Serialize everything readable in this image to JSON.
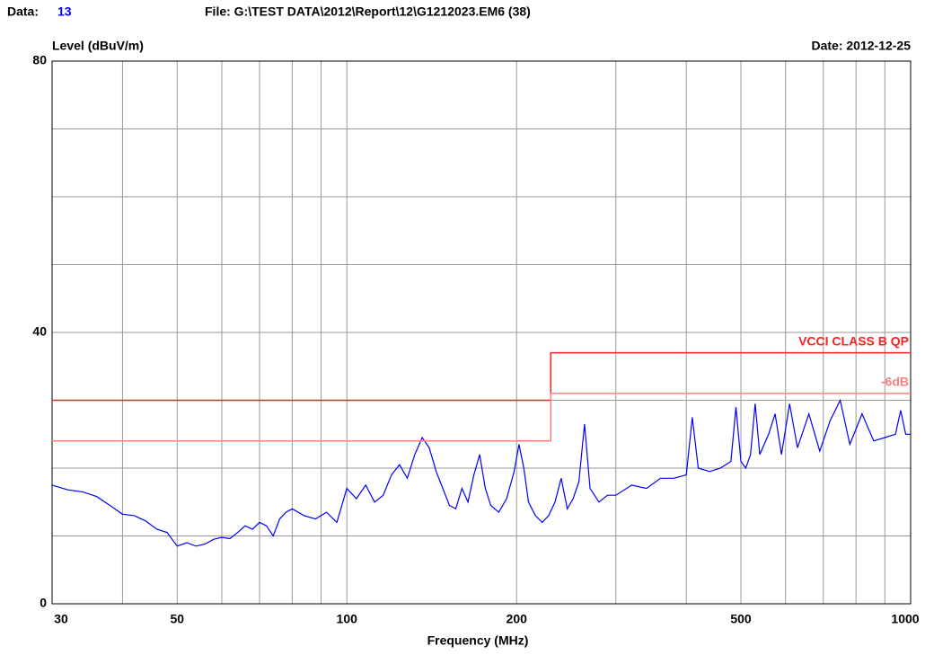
{
  "chart_data": {
    "type": "line",
    "data_label": "Data:",
    "data_number": "13",
    "file": "File: G:\\TEST DATA\\2012\\Report\\12\\G1212023.EM6  (38)",
    "ylabel": "Level (dBuV/m)",
    "date": "Date: 2012-12-25",
    "xlabel": "Frequency (MHz)",
    "xscale": "log",
    "xlim": [
      30,
      1000
    ],
    "ylim": [
      0,
      80
    ],
    "xticks": [
      30,
      50,
      100,
      200,
      500,
      1000
    ],
    "xminor": [
      40,
      60,
      70,
      80,
      90,
      300,
      400,
      600,
      700,
      800,
      900
    ],
    "yticks": [
      0,
      40,
      80
    ],
    "yminor": [
      10,
      20,
      30,
      50,
      60,
      70
    ],
    "grid": true,
    "series": [
      {
        "name": "Level",
        "color": "#0000ff",
        "x": [
          30,
          32,
          34,
          36,
          38,
          40,
          42,
          44,
          46,
          48,
          50,
          52,
          54,
          56,
          58,
          60,
          62,
          64,
          66,
          68,
          70,
          72,
          74,
          76,
          78,
          80,
          84,
          88,
          92,
          96,
          100,
          104,
          108,
          112,
          116,
          120,
          124,
          128,
          132,
          136,
          140,
          144,
          148,
          152,
          156,
          160,
          164,
          168,
          172,
          176,
          180,
          186,
          192,
          198,
          202,
          206,
          210,
          216,
          222,
          228,
          234,
          240,
          246,
          252,
          258,
          264,
          270,
          280,
          290,
          300,
          320,
          340,
          360,
          380,
          400,
          410,
          420,
          440,
          460,
          480,
          490,
          500,
          510,
          520,
          530,
          540,
          560,
          575,
          590,
          610,
          630,
          660,
          690,
          720,
          750,
          780,
          820,
          860,
          900,
          940,
          960,
          980,
          1000
        ],
        "values": [
          17.5,
          16.8,
          16.5,
          15.8,
          14.5,
          13.2,
          13.0,
          12.2,
          11.0,
          10.5,
          8.5,
          9.0,
          8.5,
          8.8,
          9.5,
          9.8,
          9.6,
          10.5,
          11.5,
          11.0,
          12.0,
          11.5,
          10.0,
          12.5,
          13.5,
          14.0,
          13.0,
          12.5,
          13.5,
          12.0,
          17.0,
          15.5,
          17.5,
          15.0,
          16.0,
          19.0,
          20.5,
          18.5,
          22.0,
          24.5,
          23.0,
          19.5,
          17.0,
          14.5,
          14.0,
          17.0,
          15.0,
          19.0,
          22.0,
          17.0,
          14.5,
          13.5,
          15.5,
          19.5,
          23.5,
          20.0,
          15.0,
          13.0,
          12.0,
          13.0,
          15.0,
          18.5,
          14.0,
          15.5,
          18.0,
          26.5,
          17.0,
          15.0,
          16.0,
          16.0,
          17.5,
          17.0,
          18.5,
          18.5,
          19.0,
          27.5,
          20.0,
          19.5,
          20.0,
          21.0,
          29.0,
          21.0,
          20.0,
          22.0,
          29.5,
          22.0,
          25.0,
          28.0,
          22.0,
          29.5,
          23.0,
          28.0,
          22.5,
          27.0,
          30.0,
          23.5,
          28.0,
          24.0,
          24.5,
          25.0,
          28.5,
          25.0,
          25.0
        ]
      },
      {
        "name": "VCCI CLASS B QP",
        "color": "#ff2020",
        "x": [
          30,
          230,
          230,
          1000
        ],
        "values": [
          30,
          30,
          37,
          37
        ]
      },
      {
        "name": "-6dB",
        "color": "#ff8080",
        "x": [
          30,
          230,
          230,
          1000
        ],
        "values": [
          24,
          24,
          31,
          31
        ]
      }
    ]
  }
}
